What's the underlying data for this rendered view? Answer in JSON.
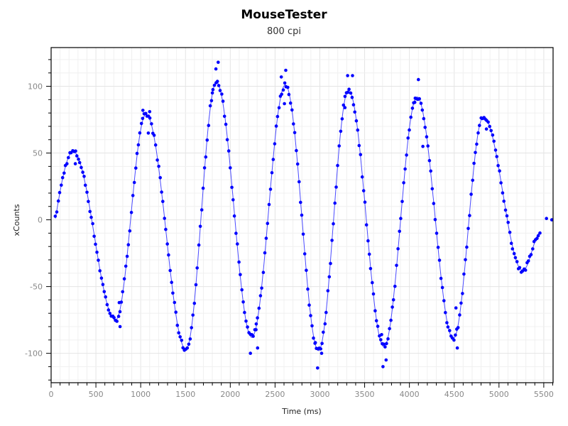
{
  "window": {
    "title": "MouseTester",
    "subtitle": "800 cpi"
  },
  "colors": {
    "series": "#0000ff",
    "line": "#4a4aff",
    "grid_minor": "#f0f0f0",
    "grid_major": "#e4e4e4",
    "axis": "#000000",
    "tick_label": "#888888"
  },
  "chart_data": {
    "type": "scatter",
    "title": "MouseTester",
    "subtitle": "800 cpi",
    "xlabel": "Time (ms)",
    "ylabel": "xCounts",
    "xlim": [
      0,
      5604
    ],
    "ylim": [
      -122,
      129
    ],
    "x_ticks": [
      0,
      500,
      1000,
      1500,
      2000,
      2500,
      3000,
      3500,
      4000,
      4500,
      5000,
      5500
    ],
    "y_ticks": [
      -100,
      -50,
      0,
      50,
      100
    ],
    "x_tick_labels": [
      "0",
      "500",
      "1000",
      "1500",
      "2000",
      "2500",
      "3000",
      "3500",
      "4000",
      "4500",
      "5000",
      "5500"
    ],
    "y_tick_labels": [
      "-100",
      "-50",
      "0",
      "50",
      "100"
    ],
    "x_minor_step": 100,
    "y_minor_step": 10,
    "grid": true,
    "legend": null,
    "series": [
      {
        "name": "xCounts",
        "marker": "circle",
        "line": "smoothed fit",
        "extrema": [
          {
            "t": 48,
            "v": 1
          },
          {
            "t": 245,
            "v": 51
          },
          {
            "t": 720,
            "v": -75
          },
          {
            "t": 1060,
            "v": 79
          },
          {
            "t": 1505,
            "v": -97
          },
          {
            "t": 1845,
            "v": 103
          },
          {
            "t": 2240,
            "v": -88
          },
          {
            "t": 2615,
            "v": 101
          },
          {
            "t": 2985,
            "v": -98
          },
          {
            "t": 3320,
            "v": 97
          },
          {
            "t": 3715,
            "v": -95
          },
          {
            "t": 4085,
            "v": 92
          },
          {
            "t": 4490,
            "v": -89
          },
          {
            "t": 4825,
            "v": 77
          },
          {
            "t": 5265,
            "v": -38
          },
          {
            "t": 5470,
            "v": -9
          }
        ],
        "outliers": [
          {
            "t": 270,
            "v": 42
          },
          {
            "t": 770,
            "v": -80
          },
          {
            "t": 760,
            "v": -62
          },
          {
            "t": 1025,
            "v": 82
          },
          {
            "t": 1100,
            "v": 81
          },
          {
            "t": 1085,
            "v": 65
          },
          {
            "t": 1840,
            "v": 113
          },
          {
            "t": 1865,
            "v": 118
          },
          {
            "t": 1800,
            "v": 95
          },
          {
            "t": 2225,
            "v": -100
          },
          {
            "t": 2305,
            "v": -96
          },
          {
            "t": 2290,
            "v": -78
          },
          {
            "t": 2620,
            "v": 112
          },
          {
            "t": 2570,
            "v": 107
          },
          {
            "t": 2605,
            "v": 87
          },
          {
            "t": 2975,
            "v": -111
          },
          {
            "t": 2950,
            "v": -92
          },
          {
            "t": 3020,
            "v": -100
          },
          {
            "t": 3310,
            "v": 108
          },
          {
            "t": 3365,
            "v": 108
          },
          {
            "t": 3280,
            "v": 84
          },
          {
            "t": 3705,
            "v": -110
          },
          {
            "t": 3740,
            "v": -105
          },
          {
            "t": 3690,
            "v": -86
          },
          {
            "t": 4100,
            "v": 105
          },
          {
            "t": 4060,
            "v": 88
          },
          {
            "t": 4150,
            "v": 55
          },
          {
            "t": 4535,
            "v": -96
          },
          {
            "t": 4520,
            "v": -66
          },
          {
            "t": 4860,
            "v": 68
          },
          {
            "t": 4810,
            "v": 76
          },
          {
            "t": 5530,
            "v": 1
          },
          {
            "t": 5590,
            "v": 0
          }
        ],
        "sample_interval_ms": 16
      }
    ]
  }
}
